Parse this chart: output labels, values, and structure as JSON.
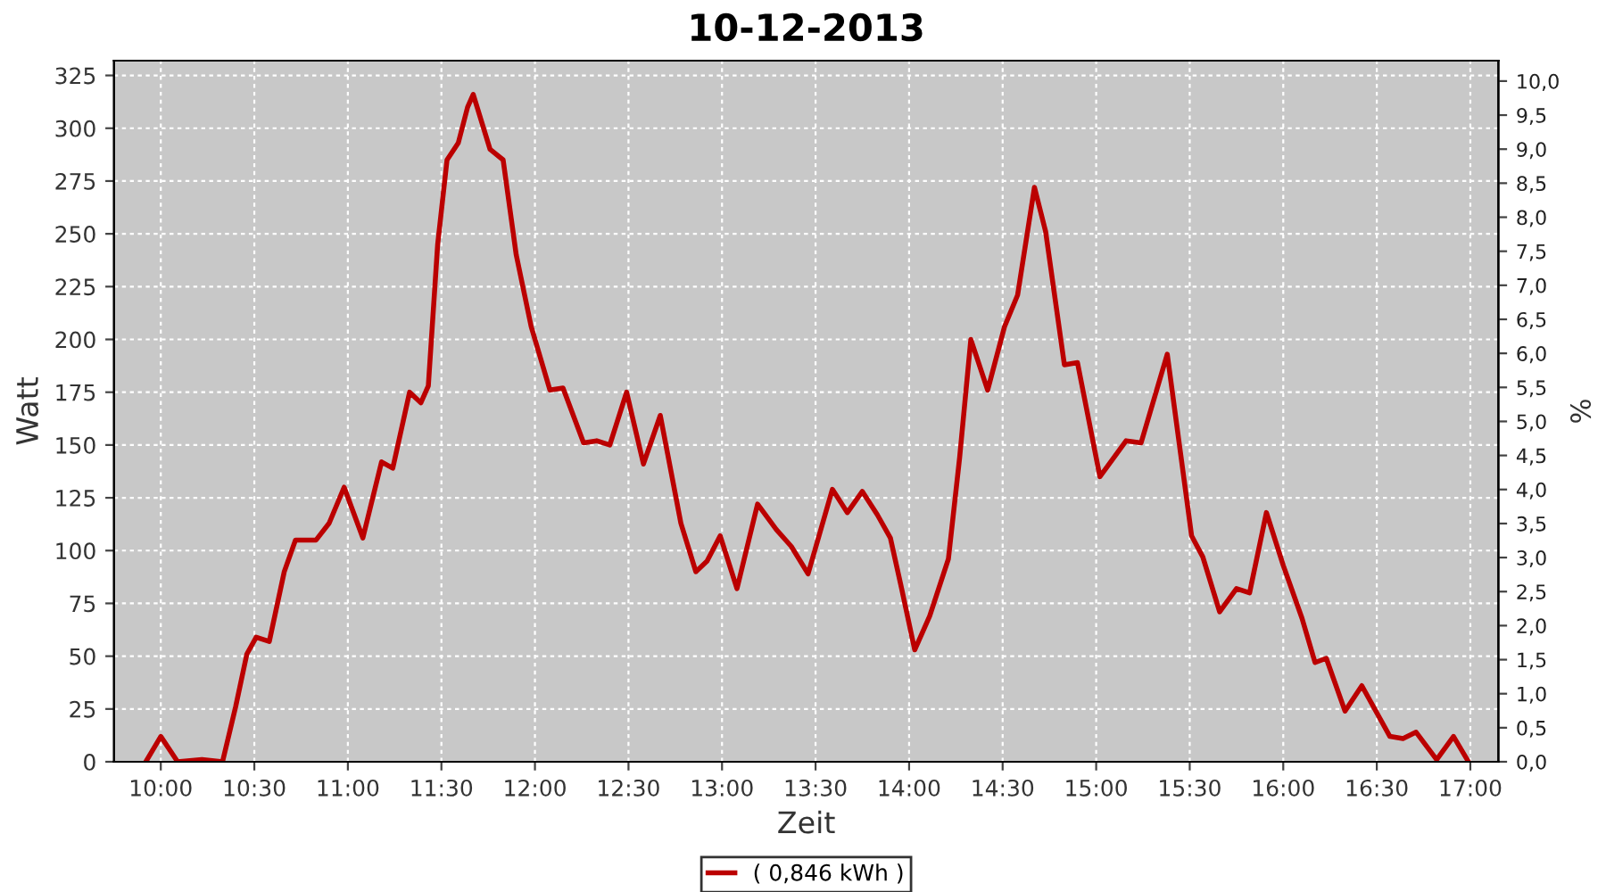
{
  "chart_data": {
    "type": "line",
    "title": "10-12-2013",
    "xlabel": "Zeit",
    "ylabel": "Watt",
    "y2label": "%",
    "xlim": [
      9.75,
      17.15
    ],
    "xticks": [
      {
        "value": 10,
        "label": "10:00"
      },
      {
        "value": 10.5,
        "label": "10:30"
      },
      {
        "value": 11,
        "label": "11:00"
      },
      {
        "value": 11.5,
        "label": "11:30"
      },
      {
        "value": 12,
        "label": "12:00"
      },
      {
        "value": 12.5,
        "label": "12:30"
      },
      {
        "value": 13,
        "label": "13:00"
      },
      {
        "value": 13.5,
        "label": "13:30"
      },
      {
        "value": 14,
        "label": "14:00"
      },
      {
        "value": 14.5,
        "label": "14:30"
      },
      {
        "value": 15,
        "label": "15:00"
      },
      {
        "value": 15.5,
        "label": "15:30"
      },
      {
        "value": 16,
        "label": "16:00"
      },
      {
        "value": 16.5,
        "label": "16:30"
      },
      {
        "value": 17,
        "label": "17:00"
      }
    ],
    "ylim": [
      0,
      332
    ],
    "yticks": [
      0,
      25,
      50,
      75,
      100,
      125,
      150,
      175,
      200,
      225,
      250,
      275,
      300,
      325
    ],
    "y2lim": [
      0,
      10.3
    ],
    "y2ticks": [
      {
        "value": 0,
        "label": "0,0"
      },
      {
        "value": 0.5,
        "label": "0,5"
      },
      {
        "value": 1,
        "label": "1,0"
      },
      {
        "value": 1.5,
        "label": "1,5"
      },
      {
        "value": 2,
        "label": "2,0"
      },
      {
        "value": 2.5,
        "label": "2,5"
      },
      {
        "value": 3,
        "label": "3,0"
      },
      {
        "value": 3.5,
        "label": "3,5"
      },
      {
        "value": 4,
        "label": "4,0"
      },
      {
        "value": 4.5,
        "label": "4,5"
      },
      {
        "value": 5,
        "label": "5,0"
      },
      {
        "value": 5.5,
        "label": "5,5"
      },
      {
        "value": 6,
        "label": "6,0"
      },
      {
        "value": 6.5,
        "label": "6,5"
      },
      {
        "value": 7,
        "label": "7,0"
      },
      {
        "value": 7.5,
        "label": "7,5"
      },
      {
        "value": 8,
        "label": "8,0"
      },
      {
        "value": 8.5,
        "label": "8,5"
      },
      {
        "value": 9,
        "label": "9,0"
      },
      {
        "value": 9.5,
        "label": "9,5"
      },
      {
        "value": 10,
        "label": "10,0"
      }
    ],
    "grid": true,
    "legend": "bottom",
    "marker": "none",
    "line_style": "solid",
    "series": [
      {
        "name": "( 0,846 kWh )",
        "color": "#bb0000",
        "x": [
          9.92,
          10.0,
          10.09,
          10.22,
          10.33,
          10.4,
          10.46,
          10.51,
          10.58,
          10.66,
          10.72,
          10.83,
          10.9,
          10.98,
          11.08,
          11.18,
          11.24,
          11.33,
          11.39,
          11.43,
          11.48,
          11.53,
          11.59,
          11.64,
          11.67,
          11.76,
          11.83,
          11.9,
          11.98,
          12.08,
          12.15,
          12.26,
          12.33,
          12.4,
          12.49,
          12.58,
          12.67,
          12.78,
          12.86,
          12.92,
          12.99,
          13.08,
          13.19,
          13.29,
          13.37,
          13.46,
          13.59,
          13.67,
          13.75,
          13.83,
          13.9,
          13.96,
          14.03,
          14.11,
          14.21,
          14.27,
          14.33,
          14.42,
          14.51,
          14.58,
          14.67,
          14.73,
          14.83,
          14.9,
          15.02,
          15.16,
          15.24,
          15.38,
          15.51,
          15.57,
          15.66,
          15.75,
          15.82,
          15.91,
          16.0,
          16.1,
          16.17,
          16.23,
          16.33,
          16.42,
          16.57,
          16.64,
          16.71,
          16.82,
          16.91,
          16.99
        ],
        "values": [
          0,
          12,
          0,
          1,
          0,
          26,
          51,
          59,
          57,
          90,
          105,
          105,
          113,
          130,
          106,
          142,
          139,
          175,
          170,
          178,
          245,
          285,
          293,
          310,
          316,
          290,
          285,
          240,
          206,
          176,
          177,
          151,
          152,
          150,
          175,
          141,
          164,
          113,
          90,
          95,
          107,
          82,
          122,
          110,
          102,
          89,
          129,
          118,
          128,
          117,
          106,
          82,
          53,
          69,
          96,
          144,
          200,
          176,
          206,
          221,
          272,
          251,
          188,
          189,
          135,
          152,
          151,
          193,
          107,
          97,
          71,
          82,
          80,
          118,
          93,
          68,
          47,
          49,
          24,
          36,
          12,
          11,
          14,
          1,
          12,
          0
        ]
      }
    ]
  }
}
